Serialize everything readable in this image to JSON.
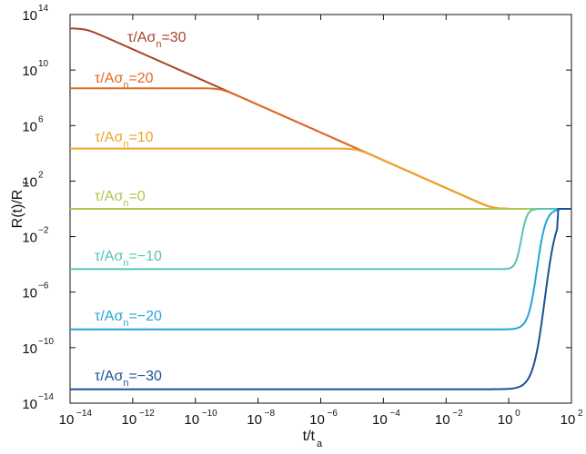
{
  "chart_data": {
    "type": "line",
    "title": "",
    "xlabel": "t/t",
    "xlabel_sub": "a",
    "ylabel": "R(t)/R",
    "ylabel_sub": "r",
    "xscale": "log",
    "yscale": "log",
    "x_exp_range": [
      -14,
      2
    ],
    "y_exp_range": [
      -14,
      14
    ],
    "x_ticks": [
      {
        "base": "10",
        "exp": "−14",
        "e": -14
      },
      {
        "base": "10",
        "exp": "−12",
        "e": -12
      },
      {
        "base": "10",
        "exp": "−10",
        "e": -10
      },
      {
        "base": "10",
        "exp": "−8",
        "e": -8
      },
      {
        "base": "10",
        "exp": "−6",
        "e": -6
      },
      {
        "base": "10",
        "exp": "−4",
        "e": -4
      },
      {
        "base": "10",
        "exp": "−2",
        "e": -2
      },
      {
        "base": "10",
        "exp": "0",
        "e": 0
      },
      {
        "base": "10",
        "exp": "2",
        "e": 2
      }
    ],
    "y_ticks": [
      {
        "base": "10",
        "exp": "14",
        "e": 14
      },
      {
        "base": "10",
        "exp": "10",
        "e": 10
      },
      {
        "base": "10",
        "exp": "6",
        "e": 6
      },
      {
        "base": "10",
        "exp": "2",
        "e": 2
      },
      {
        "base": "10",
        "exp": "−2",
        "e": -2
      },
      {
        "base": "10",
        "exp": "−6",
        "e": -6
      },
      {
        "base": "10",
        "exp": "−10",
        "e": -10
      },
      {
        "base": "10",
        "exp": "−14",
        "e": -14
      }
    ],
    "grid": false,
    "series": [
      {
        "label_main": "τ/Aσ",
        "label_sub": "n",
        "label_val": "=30",
        "color": "#a8432a",
        "log_plateau": 13.0,
        "release_log_t": -12.4
      },
      {
        "label_main": "τ/Aσ",
        "label_sub": "n",
        "label_val": "=20",
        "color": "#e06a22",
        "log_plateau": 8.686,
        "release_log_t": -8.0
      },
      {
        "label_main": "τ/Aσ",
        "label_sub": "n",
        "label_val": "=10",
        "color": "#eea429",
        "log_plateau": 4.343,
        "release_log_t": -3.6
      },
      {
        "label_main": "τ/Aσ",
        "label_sub": "n",
        "label_val": "=0",
        "color": "#a9c94b",
        "log_plateau": 0.0,
        "release_log_t": null
      },
      {
        "label_main": "τ/Aσ",
        "label_sub": "n",
        "label_val": "=−10",
        "color": "#56c3b6",
        "log_plateau": -4.343,
        "release_log_t": 0.4
      },
      {
        "label_main": "τ/Aσ",
        "label_sub": "n",
        "label_val": "=−20",
        "color": "#23a6d6",
        "log_plateau": -8.686,
        "release_log_t": 0.9
      },
      {
        "label_main": "τ/Aσ",
        "label_sub": "n",
        "label_val": "=−30",
        "color": "#1a5196",
        "log_plateau": -13.0,
        "release_log_t": 1.15
      }
    ]
  }
}
